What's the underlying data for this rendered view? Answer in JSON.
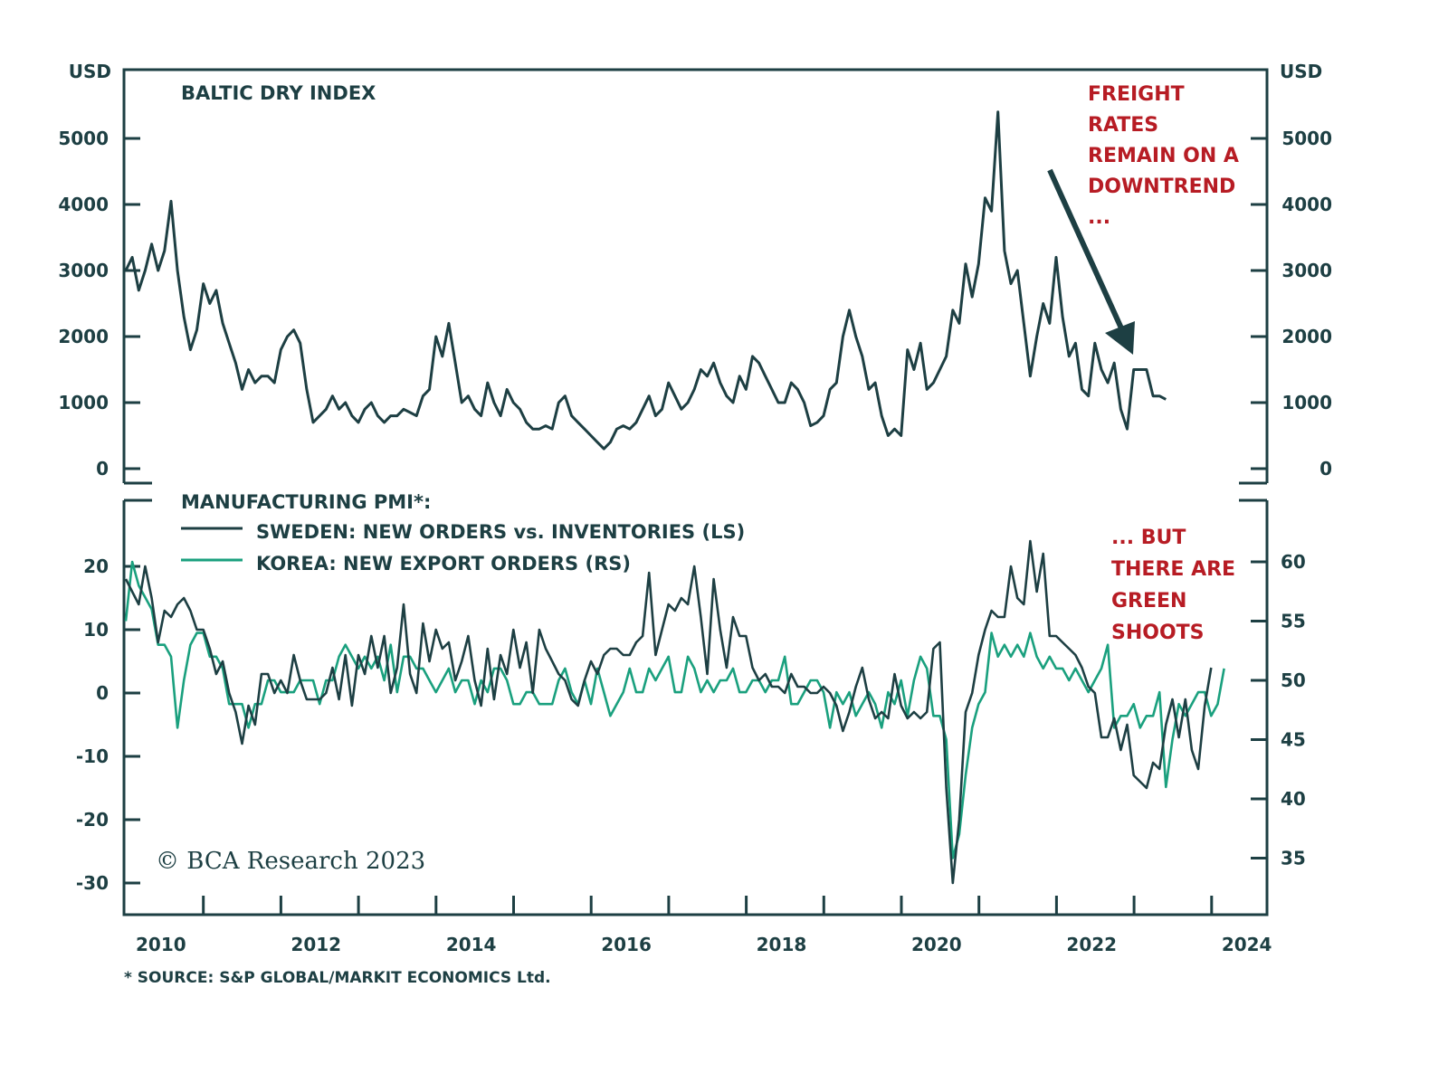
{
  "chart_data": [
    {
      "type": "line",
      "title": "BALTIC DRY INDEX",
      "ylabel_left": "USD",
      "ylabel_right": "USD",
      "ylim": [
        0,
        5500
      ],
      "yticks": [
        0,
        1000,
        2000,
        3000,
        4000,
        5000
      ],
      "ytick_labels": [
        "0",
        "1000",
        "2000",
        "3000",
        "4000",
        "5000"
      ],
      "xlim": [
        2010.0,
        2024.72
      ],
      "grid": false,
      "series": [
        {
          "name": "Baltic Dry Index",
          "color": "#1d3f43",
          "x_start": 2010.0,
          "x_step": 0.0833,
          "values": [
            3000,
            3200,
            2700,
            3000,
            3400,
            3000,
            3300,
            4050,
            3000,
            2300,
            1800,
            2100,
            2800,
            2500,
            2700,
            2200,
            1900,
            1600,
            1200,
            1500,
            1300,
            1400,
            1400,
            1300,
            1800,
            2000,
            2100,
            1900,
            1200,
            700,
            800,
            900,
            1100,
            900,
            1000,
            800,
            700,
            900,
            1000,
            800,
            700,
            800,
            800,
            900,
            850,
            800,
            1100,
            1200,
            2000,
            1700,
            2200,
            1600,
            1000,
            1100,
            900,
            800,
            1300,
            1000,
            800,
            1200,
            1000,
            900,
            700,
            600,
            600,
            650,
            600,
            1000,
            1100,
            800,
            700,
            600,
            500,
            400,
            300,
            400,
            600,
            650,
            600,
            700,
            900,
            1100,
            800,
            900,
            1300,
            1100,
            900,
            1000,
            1200,
            1500,
            1400,
            1600,
            1300,
            1100,
            1000,
            1400,
            1200,
            1700,
            1600,
            1400,
            1200,
            1000,
            1000,
            1300,
            1200,
            1000,
            650,
            700,
            800,
            1200,
            1300,
            2000,
            2400,
            2000,
            1700,
            1200,
            1300,
            800,
            500,
            600,
            500,
            1800,
            1500,
            1900,
            1200,
            1300,
            1500,
            1700,
            2400,
            2200,
            3100,
            2600,
            3100,
            4100,
            3900,
            5400,
            3300,
            2800,
            3000,
            2200,
            1400,
            2000,
            2500,
            2200,
            3200,
            2300,
            1700,
            1900,
            1200,
            1100,
            1900,
            1500,
            1300,
            1600,
            900,
            600,
            1500,
            1500,
            1500,
            1100,
            1100,
            1050
          ]
        }
      ],
      "annotations": [
        "FREIGHT RATES REMAIN ON A DOWNTREND ..."
      ]
    },
    {
      "type": "line",
      "title": "MANUFACTURING PMI*:",
      "ylim_left": [
        -35,
        30
      ],
      "yticks_left": [
        -30,
        -20,
        -10,
        0,
        10,
        20
      ],
      "ytick_labels_left": [
        "-30",
        "-20",
        "-10",
        "0",
        "10",
        "20"
      ],
      "ylim_right": [
        32.5,
        65
      ],
      "yticks_right": [
        35,
        40,
        45,
        50,
        55,
        60
      ],
      "ytick_labels_right": [
        "35",
        "40",
        "45",
        "50",
        "55",
        "60"
      ],
      "xlim": [
        2010.0,
        2024.72
      ],
      "xticks_labels": [
        "2010",
        "2012",
        "2014",
        "2016",
        "2018",
        "2020",
        "2022",
        "2024"
      ],
      "grid": false,
      "legend_position": "top-left",
      "series": [
        {
          "name": "SWEDEN: NEW ORDERS vs. INVENTORIES (LS)",
          "axis": "left",
          "color": "#1d3f43",
          "x_start": 2010.0,
          "x_step": 0.0833,
          "values": [
            18,
            16,
            14,
            20,
            15,
            8,
            13,
            12,
            14,
            15,
            13,
            10,
            10,
            7,
            3,
            5,
            0,
            -3,
            -8,
            -2,
            -5,
            3,
            3,
            0,
            2,
            0,
            6,
            2,
            -1,
            -1,
            -1,
            0,
            4,
            -1,
            6,
            -2,
            6,
            3,
            9,
            4,
            9,
            0,
            4,
            14,
            3,
            0,
            11,
            5,
            10,
            7,
            8,
            2,
            5,
            9,
            2,
            -2,
            7,
            -1,
            6,
            3,
            10,
            4,
            8,
            0,
            10,
            7,
            5,
            3,
            2,
            -1,
            -2,
            2,
            5,
            3,
            6,
            7,
            7,
            6,
            6,
            8,
            9,
            19,
            6,
            10,
            14,
            13,
            15,
            14,
            20,
            12,
            3,
            18,
            10,
            4,
            12,
            9,
            9,
            4,
            2,
            3,
            1,
            1,
            0,
            3,
            1,
            1,
            0,
            0,
            1,
            0,
            -2,
            -6,
            -3,
            1,
            4,
            -1,
            -4,
            -3,
            -4,
            3,
            -2,
            -4,
            -3,
            -4,
            -3,
            7,
            8,
            -15,
            -30,
            -20,
            -3,
            0,
            6,
            10,
            13,
            12,
            12,
            20,
            15,
            14,
            24,
            16,
            22,
            9,
            9,
            8,
            7,
            6,
            4,
            1,
            0,
            -7,
            -7,
            -4,
            -9,
            -5,
            -13,
            -14,
            -15,
            -11,
            -12,
            -5,
            -1,
            -7,
            -1,
            -9,
            -12,
            -2,
            4
          ]
        },
        {
          "name": "KOREA: NEW EXPORT ORDERS (RS)",
          "axis": "right",
          "color": "#1aa07e",
          "x_start": 2010.0,
          "x_step": 0.0833,
          "values": [
            55,
            60,
            58,
            57,
            56,
            53,
            53,
            52,
            46,
            50,
            53,
            54,
            54,
            52,
            52,
            51,
            48,
            48,
            48,
            46,
            48,
            48,
            50,
            50,
            49,
            49,
            49,
            50,
            50,
            50,
            48,
            50,
            50,
            52,
            53,
            52,
            51,
            52,
            51,
            52,
            50,
            53,
            49,
            52,
            52,
            51,
            51,
            50,
            49,
            50,
            51,
            49,
            50,
            50,
            48,
            50,
            49,
            51,
            51,
            50,
            48,
            48,
            49,
            49,
            48,
            48,
            48,
            50,
            51,
            49,
            48,
            50,
            48,
            51,
            49,
            47,
            48,
            49,
            51,
            49,
            49,
            51,
            50,
            51,
            52,
            49,
            49,
            52,
            51,
            49,
            50,
            49,
            50,
            50,
            51,
            49,
            49,
            50,
            50,
            49,
            50,
            50,
            52,
            48,
            48,
            49,
            50,
            50,
            49,
            46,
            49,
            48,
            49,
            47,
            48,
            49,
            48,
            46,
            49,
            48,
            50,
            47,
            50,
            52,
            51,
            47,
            47,
            45,
            35,
            37,
            42,
            46,
            48,
            49,
            54,
            52,
            53,
            52,
            53,
            52,
            54,
            52,
            51,
            52,
            51,
            51,
            50,
            51,
            50,
            49,
            50,
            51,
            53,
            46,
            47,
            47,
            48,
            46,
            47,
            47,
            49,
            41,
            45,
            48,
            47,
            48,
            49,
            49,
            47,
            48,
            51
          ]
        }
      ],
      "annotations": [
        "... BUT THERE ARE GREEN SHOOTS"
      ]
    }
  ],
  "top_panel": {
    "title": "BALTIC DRY INDEX",
    "unit_left": "USD",
    "unit_right": "USD",
    "yticks": [
      "5000",
      "4000",
      "3000",
      "2000",
      "1000",
      "0"
    ],
    "annotation_lines": [
      "FREIGHT",
      "RATES",
      "REMAIN ON A",
      "DOWNTREND",
      "..."
    ]
  },
  "bottom_panel": {
    "title": "MANUFACTURING PMI*:",
    "legend": [
      {
        "label": "SWEDEN: NEW ORDERS vs. INVENTORIES (LS)",
        "color": "#1d3f43"
      },
      {
        "label": "KOREA: NEW EXPORT ORDERS (RS)",
        "color": "#1aa07e"
      }
    ],
    "yticks_left": [
      "20",
      "10",
      "0",
      "-10",
      "-20",
      "-30"
    ],
    "yticks_right": [
      "60",
      "55",
      "50",
      "45",
      "40",
      "35"
    ],
    "annotation_lines": [
      "... BUT",
      "THERE ARE",
      "GREEN",
      "SHOOTS"
    ],
    "copyright": "© BCA Research 2023"
  },
  "xaxis": {
    "labels": [
      "2010",
      "2012",
      "2014",
      "2016",
      "2018",
      "2020",
      "2022",
      "2024"
    ]
  },
  "footnote": "* SOURCE: S&P GLOBAL/MARKIT ECONOMICS Ltd.",
  "colors": {
    "axis": "#1d3f43",
    "sweden": "#1d3f43",
    "korea": "#1aa07e",
    "annotation": "#b71c24"
  }
}
